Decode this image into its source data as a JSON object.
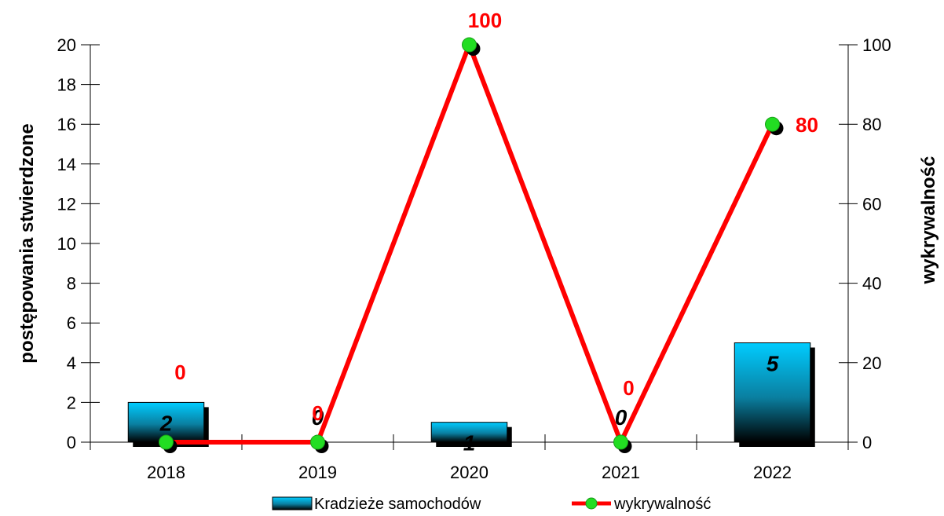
{
  "chart_data": {
    "type": "bar+line",
    "categories": [
      "2018",
      "2019",
      "2020",
      "2021",
      "2022"
    ],
    "series": [
      {
        "name": "Kradzieże samochodów",
        "type": "bar",
        "axis": "left",
        "values": [
          2,
          0,
          1,
          0,
          5
        ],
        "value_labels": [
          "2",
          "0",
          "1",
          "0",
          "5"
        ]
      },
      {
        "name": "wykrywalność",
        "type": "line",
        "axis": "right",
        "values": [
          0,
          0,
          100,
          0,
          80
        ],
        "value_labels": [
          "0",
          "0",
          "100",
          "0",
          "80"
        ]
      }
    ],
    "ylabel": "postępowania stwierdzone",
    "ylabel_right": "wykrywalność",
    "ylim": [
      0,
      20
    ],
    "ylim_right": [
      0,
      100
    ],
    "yticks": [
      "0",
      "2",
      "4",
      "6",
      "8",
      "10",
      "12",
      "14",
      "16",
      "18",
      "20"
    ],
    "yticks_right": [
      "0",
      "20",
      "40",
      "60",
      "80",
      "100"
    ],
    "grid": false,
    "legend_position": "bottom",
    "colors": {
      "bar_top": "#00ccff",
      "bar_bottom": "#000000",
      "line": "#ff0000",
      "marker": "#22dd22",
      "line_label": "#ff0000"
    }
  }
}
